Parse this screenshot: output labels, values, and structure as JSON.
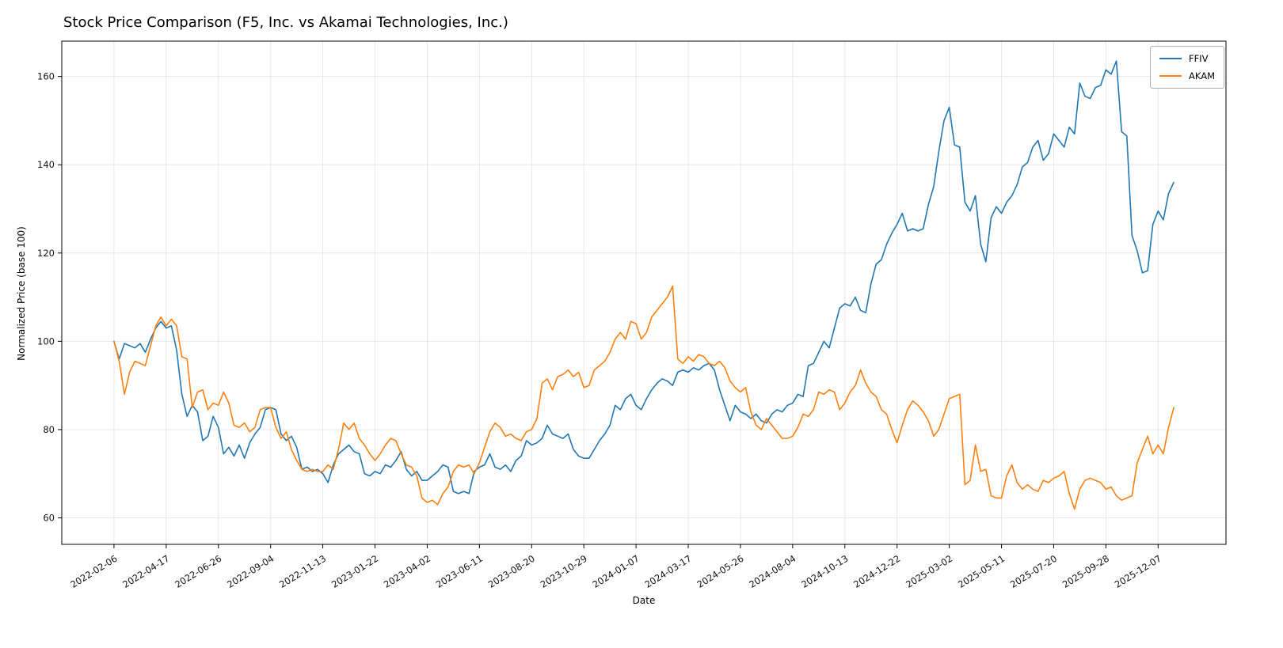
{
  "figure": {
    "background": "#ffffff"
  },
  "chart_data": {
    "type": "line",
    "title": "Stock Price Comparison (F5, Inc. vs Akamai Technologies, Inc.)",
    "xlabel": "Date",
    "ylabel": "Normalized Price (base 100)",
    "ylim": [
      54,
      168
    ],
    "yticks": [
      60,
      80,
      100,
      120,
      140,
      160
    ],
    "x_frequency": "weekly",
    "x_start": "2022-02-06",
    "grid": true,
    "legend_position": "upper right",
    "xtick_positions": [
      0,
      10,
      20,
      30,
      40,
      50,
      60,
      70,
      80,
      90,
      100,
      110,
      120,
      130,
      140,
      150,
      160,
      170,
      180,
      190,
      200
    ],
    "xtick_labels": [
      "2022-02-06",
      "2022-04-17",
      "2022-06-26",
      "2022-09-04",
      "2022-11-13",
      "2023-01-22",
      "2023-04-02",
      "2023-06-11",
      "2023-08-20",
      "2023-10-29",
      "2024-01-07",
      "2024-03-17",
      "2024-05-26",
      "2024-08-04",
      "2024-10-13",
      "2024-12-22",
      "2025-03-02",
      "2025-05-11",
      "2025-07-20",
      "2025-09-28",
      "2025-12-07"
    ],
    "series": [
      {
        "name": "FFIV",
        "color": "#1f77b4",
        "values": [
          100,
          96,
          99.5,
          99,
          98.5,
          99.5,
          97.5,
          100.5,
          103,
          104.5,
          103,
          103.5,
          98,
          88,
          83,
          85.5,
          84,
          77.5,
          78.5,
          83,
          80.5,
          74.5,
          76,
          74,
          76.5,
          73.5,
          77,
          79,
          80.5,
          84.5,
          85,
          84.5,
          79,
          77.5,
          78.5,
          76,
          71,
          71.5,
          70.5,
          71,
          70,
          68,
          72,
          74.5,
          75.5,
          76.5,
          75,
          74.5,
          70,
          69.5,
          70.5,
          70,
          72,
          71.5,
          73,
          75,
          71,
          69.5,
          70.5,
          68.5,
          68.5,
          69.5,
          70.5,
          72,
          71.5,
          66,
          65.5,
          66,
          65.5,
          70.5,
          71.5,
          72,
          74.5,
          71.5,
          71,
          72,
          70.5,
          73,
          74,
          77.5,
          76.5,
          77,
          78,
          81,
          79,
          78.5,
          78,
          79,
          75.5,
          74,
          73.5,
          73.5,
          75.5,
          77.5,
          79,
          81,
          85.5,
          84.5,
          87,
          88,
          85.5,
          84.5,
          87,
          89,
          90.5,
          91.5,
          91,
          90,
          93,
          93.5,
          93,
          94,
          93.5,
          94.5,
          95,
          93.5,
          89,
          85.5,
          82,
          85.5,
          84,
          83.5,
          82.5,
          83.5,
          82,
          81.5,
          83.5,
          84.5,
          84,
          85.5,
          86,
          88,
          87.5,
          94.5,
          95,
          97.5,
          100,
          98.5,
          103,
          107.5,
          108.5,
          108,
          110,
          107,
          106.5,
          113,
          117.5,
          118.5,
          122,
          124.5,
          126.5,
          129,
          125,
          125.5,
          125,
          125.5,
          131,
          135,
          143,
          150,
          153,
          144.5,
          144,
          131.5,
          129.5,
          133,
          122,
          118,
          128,
          130.5,
          129,
          131.5,
          133,
          135.5,
          139.5,
          140.5,
          144,
          145.5,
          141,
          142.5,
          147,
          145.5,
          144,
          148.5,
          147,
          158.5,
          155.5,
          155,
          157.5,
          158,
          161.5,
          160.5,
          163.5,
          147.5,
          146.5,
          124,
          120.5,
          115.5,
          116,
          126.5,
          129.5,
          127.5,
          133.5,
          136
        ]
      },
      {
        "name": "AKAM",
        "color": "#ff7f0e",
        "values": [
          100,
          95.5,
          88,
          93,
          95.5,
          95,
          94.5,
          99,
          103.5,
          105.5,
          103.5,
          105,
          103.5,
          96.5,
          96,
          85,
          88.5,
          89,
          84.5,
          86,
          85.5,
          88.5,
          86,
          81,
          80.5,
          81.5,
          79.5,
          80.5,
          84.5,
          85,
          85,
          80.5,
          78,
          79.5,
          75.5,
          73,
          71,
          70.5,
          71,
          70.5,
          70.5,
          72,
          71,
          75.5,
          81.5,
          80,
          81.5,
          78,
          76.5,
          74.5,
          73,
          74.5,
          76.5,
          78,
          77.5,
          74.5,
          72,
          71.5,
          69.5,
          64.5,
          63.5,
          64,
          63,
          65.5,
          67,
          70.5,
          72,
          71.5,
          72,
          70,
          72.5,
          76,
          79.5,
          81.5,
          80.5,
          78.5,
          79,
          78,
          77.5,
          79.5,
          80,
          82.5,
          90.5,
          91.5,
          89,
          92,
          92.5,
          93.5,
          92,
          93,
          89.5,
          90,
          93.5,
          94.5,
          95.5,
          97.5,
          100.5,
          102,
          100.5,
          104.5,
          104,
          100.5,
          102,
          105.5,
          107,
          108.5,
          110,
          112.5,
          96,
          95,
          96.5,
          95.5,
          97,
          96.5,
          95,
          94.5,
          95.5,
          94,
          91,
          89.5,
          88.5,
          89.5,
          84,
          81,
          80,
          82.5,
          81,
          79.5,
          78,
          78,
          78.5,
          80.5,
          83.5,
          83,
          84.5,
          88.5,
          88,
          89,
          88.5,
          84.5,
          86,
          88.5,
          90,
          93.5,
          90.5,
          88.5,
          87.5,
          84.5,
          83.5,
          80,
          77,
          81,
          84.5,
          86.5,
          85.5,
          84,
          82,
          78.5,
          80,
          83.5,
          87,
          87.5,
          88,
          67.5,
          68.5,
          76.5,
          70.5,
          71,
          65,
          64.5,
          64.5,
          69.5,
          72,
          68,
          66.5,
          67.5,
          66.5,
          66,
          68.5,
          68,
          69,
          69.5,
          70.5,
          65.5,
          62,
          66.5,
          68.5,
          69,
          68.5,
          68,
          66.5,
          67,
          65,
          64,
          64.5,
          65,
          72.5,
          75.5,
          78.5,
          74.5,
          76.5,
          74.5,
          80.5,
          85
        ]
      }
    ]
  }
}
